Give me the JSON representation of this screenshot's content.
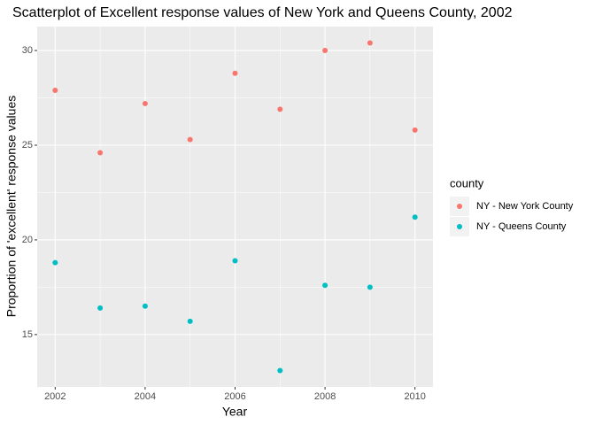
{
  "chart_data": {
    "type": "scatter",
    "title": "Scatterplot of Excellent response values of New York and Queens County, 2002",
    "x_label": "Year",
    "y_label": "Proportion of 'excellent' response values",
    "x": [
      2002,
      2003,
      2004,
      2005,
      2006,
      2007,
      2008,
      2009,
      2010
    ],
    "series": [
      {
        "name": "NY - New York County",
        "color": "#F8766D",
        "values": [
          27.9,
          24.6,
          27.2,
          25.3,
          28.8,
          26.9,
          30.0,
          30.4,
          25.8
        ]
      },
      {
        "name": "NY - Queens County",
        "color": "#00BFC4",
        "values": [
          18.8,
          16.4,
          16.5,
          15.7,
          18.9,
          13.1,
          17.6,
          17.5,
          21.2
        ]
      }
    ],
    "legend_title": "county",
    "legend_position": "right",
    "xlim": [
      2001.6,
      2010.4
    ],
    "xticks": [
      2002,
      2004,
      2006,
      2008,
      2010
    ],
    "x_minor_ticks": [
      2003,
      2005,
      2007,
      2009
    ],
    "ylim": [
      12.235,
      31.265
    ],
    "yticks": [
      15,
      20,
      25,
      30
    ],
    "y_minor_ticks": [
      17.5,
      22.5,
      27.5
    ],
    "grid": true
  }
}
